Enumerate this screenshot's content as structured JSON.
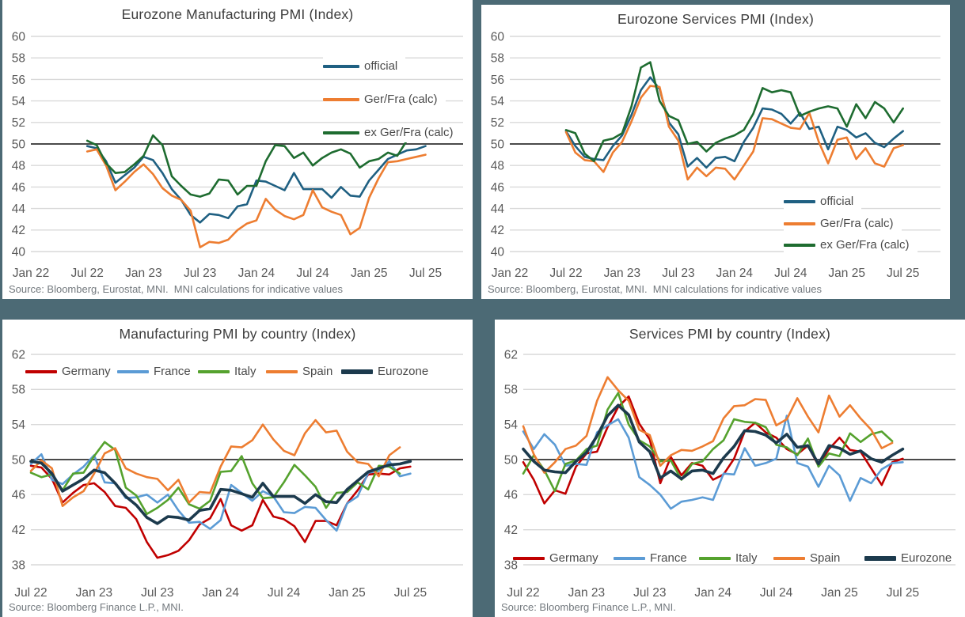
{
  "page": {
    "background": "#4C6A75",
    "panel_background": "#ffffff"
  },
  "chart_data": [
    {
      "id": "eurozone-manufacturing-pmi",
      "type": "line",
      "title": "Eurozone Manufacturing PMI (Index)",
      "source": "Source: Bloomberg, Eurostat, MNI.  MNI calculations for indicative values",
      "ylim": [
        40,
        60
      ],
      "ytick_step": 2,
      "ref_line": 50,
      "grid": true,
      "legend_position": "inside-upper-right",
      "x": {
        "tick_labels": [
          "Jan 22",
          "Jul 22",
          "Jan 23",
          "Jul 23",
          "Jan 24",
          "Jul 24",
          "Jan 25",
          "Jul 25"
        ],
        "tick_months": [
          0,
          6,
          12,
          18,
          24,
          30,
          36,
          42
        ],
        "total_months": 46,
        "data_start_month": 6,
        "data_start_label": "Jul 22",
        "data_end_label": "Jul 25"
      },
      "series": [
        {
          "name": "official",
          "color": "#1F6082",
          "width": 2.6,
          "values": [
            49.8,
            49.6,
            48.4,
            46.4,
            47.1,
            47.8,
            48.8,
            48.5,
            47.3,
            45.8,
            44.8,
            43.4,
            42.7,
            43.5,
            43.4,
            43.1,
            44.2,
            44.4,
            46.6,
            46.5,
            46.1,
            45.7,
            47.3,
            45.8,
            45.8,
            45.8,
            45.0,
            46.0,
            45.2,
            45.1,
            46.6,
            47.6,
            48.6,
            49.0,
            49.4,
            49.5,
            49.8
          ]
        },
        {
          "name": "Ger/Fra (calc)",
          "color": "#ED7D31",
          "width": 2.6,
          "values": [
            49.3,
            49.5,
            48.0,
            45.7,
            46.5,
            47.4,
            48.1,
            47.2,
            45.9,
            45.2,
            44.8,
            43.8,
            40.4,
            40.9,
            40.8,
            41.1,
            42.0,
            42.6,
            42.9,
            44.9,
            43.9,
            43.3,
            43.0,
            43.4,
            45.7,
            44.1,
            43.7,
            43.4,
            41.6,
            42.2,
            45.0,
            46.8,
            48.3,
            48.4,
            48.6,
            48.8,
            49.0
          ]
        },
        {
          "name": "ex Ger/Fra (calc)",
          "color": "#1E6C30",
          "width": 2.6,
          "values": [
            50.3,
            49.9,
            48.2,
            47.3,
            47.4,
            48.1,
            48.9,
            50.8,
            49.9,
            47.0,
            46.1,
            45.3,
            45.1,
            45.4,
            46.7,
            46.6,
            45.3,
            46.1,
            46.1,
            48.4,
            49.9,
            49.8,
            48.7,
            49.2,
            48.0,
            48.7,
            49.2,
            49.5,
            49.1,
            47.8,
            48.4,
            48.6,
            49.2,
            48.9,
            50.3,
            50.5,
            50.9
          ]
        }
      ]
    },
    {
      "id": "eurozone-services-pmi",
      "type": "line",
      "title": "Eurozone Services PMI (Index)",
      "source": "Source: Bloomberg, Eurostat, MNI.  MNI calculations for indicative values",
      "ylim": [
        40,
        60
      ],
      "ytick_step": 2,
      "ref_line": 50,
      "grid": true,
      "legend_position": "inside-lower-right",
      "x": {
        "tick_labels": [
          "Jan 22",
          "Jul 22",
          "Jan 23",
          "Jul 23",
          "Jan 24",
          "Jul 24",
          "Jan 25",
          "Jul 25"
        ],
        "tick_months": [
          0,
          6,
          12,
          18,
          24,
          30,
          36,
          42
        ],
        "total_months": 46,
        "data_start_month": 6,
        "data_start_label": "Jul 22",
        "data_end_label": "Jul 25"
      },
      "series": [
        {
          "name": "official",
          "color": "#1F6082",
          "width": 2.6,
          "values": [
            51.2,
            49.8,
            48.8,
            48.6,
            48.5,
            49.8,
            50.8,
            52.7,
            55.0,
            56.2,
            55.1,
            52.0,
            50.9,
            47.9,
            48.7,
            47.8,
            48.7,
            48.8,
            48.4,
            50.2,
            51.5,
            53.3,
            53.2,
            52.8,
            51.9,
            52.9,
            51.4,
            51.6,
            49.5,
            51.6,
            51.3,
            50.6,
            51.0,
            50.1,
            49.7,
            50.5,
            51.2
          ]
        },
        {
          "name": "Ger/Fra (calc)",
          "color": "#ED7D31",
          "width": 2.6,
          "values": [
            51.1,
            49.2,
            48.5,
            48.4,
            47.4,
            49.2,
            50.2,
            52.1,
            54.3,
            55.4,
            55.3,
            51.6,
            50.3,
            46.7,
            47.8,
            47.0,
            47.8,
            47.7,
            46.7,
            48.0,
            49.3,
            52.4,
            52.3,
            51.9,
            51.5,
            51.4,
            52.9,
            50.2,
            48.2,
            50.4,
            50.6,
            48.6,
            49.6,
            48.2,
            47.9,
            49.6,
            49.9
          ]
        },
        {
          "name": "ex Ger/Fra (calc)",
          "color": "#1E6C30",
          "width": 2.6,
          "values": [
            51.3,
            51.0,
            49.1,
            48.4,
            50.3,
            50.5,
            51.0,
            53.5,
            57.1,
            57.6,
            54.0,
            52.6,
            52.2,
            50.0,
            50.2,
            49.3,
            50.1,
            50.5,
            50.8,
            51.3,
            52.8,
            55.2,
            54.8,
            55.0,
            54.8,
            52.6,
            53.0,
            53.3,
            53.5,
            53.3,
            51.6,
            53.7,
            52.4,
            53.9,
            53.3,
            52.0,
            53.3
          ]
        }
      ]
    },
    {
      "id": "manufacturing-pmi-by-country",
      "type": "line",
      "title": "Manufacturing PMI by country (Index)",
      "source": "Source: Bloomberg Finance L.P., MNI.",
      "ylim": [
        38,
        62
      ],
      "ytick_step": 4,
      "ref_line": 50,
      "grid": true,
      "legend_position": "inside-top-row",
      "x": {
        "tick_labels": [
          "Jul 22",
          "Jan 23",
          "Jul 23",
          "Jan 24",
          "Jul 24",
          "Jan 25",
          "Jul 25"
        ],
        "tick_months": [
          0,
          6,
          12,
          18,
          24,
          30,
          36
        ],
        "total_months": 41,
        "data_start_month": 0,
        "data_start_label": "Jul 22",
        "data_end_label": "Jul 25"
      },
      "series": [
        {
          "name": "Germany",
          "color": "#C00000",
          "width": 2.6,
          "values": [
            49.3,
            49.1,
            47.8,
            45.1,
            46.2,
            47.1,
            47.3,
            46.3,
            44.7,
            44.5,
            43.2,
            40.6,
            38.8,
            39.1,
            39.6,
            40.8,
            42.6,
            43.3,
            45.5,
            42.5,
            41.9,
            42.5,
            45.4,
            43.5,
            43.2,
            42.4,
            40.6,
            43.0,
            43.0,
            42.5,
            45.0,
            46.5,
            48.3,
            48.4,
            48.3,
            49.0,
            49.2
          ]
        },
        {
          "name": "France",
          "color": "#5B9BD5",
          "width": 2.6,
          "values": [
            49.5,
            50.6,
            47.7,
            47.2,
            48.3,
            49.2,
            50.5,
            47.4,
            47.3,
            45.6,
            45.7,
            46.0,
            45.1,
            46.0,
            44.2,
            42.8,
            42.9,
            42.1,
            43.1,
            47.1,
            46.2,
            45.3,
            46.4,
            45.8,
            44.0,
            43.9,
            44.6,
            44.5,
            43.1,
            41.9,
            45.0,
            45.8,
            48.5,
            48.7,
            49.8,
            48.1,
            48.4
          ]
        },
        {
          "name": "Italy",
          "color": "#55A22E",
          "width": 2.6,
          "values": [
            48.5,
            48.0,
            48.3,
            46.5,
            48.4,
            48.5,
            50.4,
            52.0,
            51.1,
            46.8,
            45.9,
            43.8,
            44.5,
            45.4,
            46.8,
            44.9,
            44.4,
            45.3,
            48.6,
            48.7,
            50.4,
            47.3,
            45.6,
            45.7,
            47.4,
            49.4,
            48.2,
            46.9,
            44.5,
            46.2,
            46.3,
            47.4,
            46.6,
            49.3,
            49.2,
            48.4,
            null
          ]
        },
        {
          "name": "Spain",
          "color": "#ED7D31",
          "width": 2.6,
          "values": [
            48.7,
            49.9,
            49.0,
            44.7,
            45.7,
            46.4,
            48.4,
            50.7,
            51.3,
            49.0,
            48.4,
            48.0,
            47.8,
            46.5,
            47.7,
            45.1,
            46.3,
            46.2,
            49.2,
            51.5,
            51.4,
            52.2,
            54.0,
            52.3,
            51.0,
            50.5,
            53.0,
            54.5,
            53.1,
            53.3,
            50.9,
            49.7,
            49.5,
            48.1,
            50.5,
            51.4,
            null
          ]
        },
        {
          "name": "Eurozone",
          "color": "#1C3A4D",
          "width": 3.6,
          "values": [
            49.8,
            49.6,
            48.4,
            46.4,
            47.1,
            47.8,
            48.8,
            48.5,
            47.3,
            45.8,
            44.8,
            43.4,
            42.7,
            43.5,
            43.4,
            43.1,
            44.2,
            44.4,
            46.6,
            46.5,
            46.1,
            45.7,
            47.3,
            45.8,
            45.8,
            45.8,
            45.0,
            46.0,
            45.2,
            45.1,
            46.6,
            47.6,
            48.6,
            49.0,
            49.4,
            49.5,
            49.8
          ]
        }
      ]
    },
    {
      "id": "services-pmi-by-country",
      "type": "line",
      "title": "Services PMI by country (Index)",
      "source": "Source: Bloomberg Finance L.P., MNI.",
      "ylim": [
        38,
        62
      ],
      "ytick_step": 4,
      "ref_line": 50,
      "grid": true,
      "legend_position": "inside-bottom-row",
      "x": {
        "tick_labels": [
          "Jul 22",
          "Jan 23",
          "Jul 23",
          "Jan 24",
          "Jul 24",
          "Jan 25",
          "Jul 25"
        ],
        "tick_months": [
          0,
          6,
          12,
          18,
          24,
          30,
          36
        ],
        "total_months": 41,
        "data_start_month": 0,
        "data_start_label": "Jul 22",
        "data_end_label": "Jul 25"
      },
      "series": [
        {
          "name": "Germany",
          "color": "#C00000",
          "width": 2.6,
          "values": [
            49.7,
            47.7,
            45.0,
            46.5,
            46.1,
            49.2,
            50.7,
            50.9,
            53.7,
            56.0,
            57.2,
            54.1,
            52.3,
            47.3,
            50.3,
            48.2,
            49.6,
            49.3,
            47.7,
            48.3,
            50.1,
            53.2,
            54.2,
            53.1,
            52.5,
            51.2,
            50.6,
            51.6,
            49.3,
            51.2,
            52.5,
            51.1,
            50.9,
            49.0,
            47.1,
            49.7,
            50.1
          ]
        },
        {
          "name": "France",
          "color": "#5B9BD5",
          "width": 2.6,
          "values": [
            53.2,
            51.2,
            52.9,
            51.7,
            49.3,
            49.5,
            49.4,
            53.1,
            53.9,
            54.6,
            52.5,
            48.0,
            47.1,
            46.0,
            44.4,
            45.2,
            45.4,
            45.7,
            45.4,
            48.4,
            48.3,
            51.3,
            49.3,
            49.6,
            50.1,
            55.0,
            49.6,
            49.2,
            46.9,
            49.3,
            48.2,
            45.3,
            47.9,
            47.3,
            48.9,
            49.6,
            49.7
          ]
        },
        {
          "name": "Italy",
          "color": "#55A22E",
          "width": 2.6,
          "values": [
            48.4,
            50.5,
            48.8,
            46.4,
            49.5,
            49.9,
            51.2,
            51.6,
            55.7,
            57.6,
            54.0,
            52.2,
            51.5,
            49.8,
            49.9,
            47.7,
            49.5,
            49.8,
            51.2,
            52.2,
            54.6,
            54.3,
            54.2,
            53.7,
            51.7,
            51.4,
            50.5,
            52.4,
            49.2,
            50.7,
            50.4,
            53.0,
            52.0,
            52.9,
            53.2,
            52.1,
            null
          ]
        },
        {
          "name": "Spain",
          "color": "#ED7D31",
          "width": 2.6,
          "values": [
            53.8,
            50.6,
            48.5,
            49.7,
            51.2,
            51.6,
            52.7,
            56.7,
            59.4,
            57.9,
            56.7,
            53.4,
            52.8,
            49.3,
            50.5,
            51.1,
            51.0,
            51.5,
            52.1,
            54.7,
            56.1,
            56.2,
            56.9,
            56.8,
            53.9,
            54.6,
            57.0,
            54.9,
            53.1,
            57.3,
            54.9,
            56.2,
            54.7,
            53.4,
            51.3,
            51.9,
            null
          ]
        },
        {
          "name": "Eurozone",
          "color": "#1C3A4D",
          "width": 3.6,
          "values": [
            51.2,
            49.8,
            48.8,
            48.6,
            48.5,
            49.8,
            50.8,
            52.7,
            55.0,
            56.2,
            55.1,
            52.0,
            50.9,
            47.9,
            48.7,
            47.8,
            48.7,
            48.8,
            48.4,
            50.2,
            51.5,
            53.3,
            53.2,
            52.8,
            51.9,
            52.9,
            51.4,
            51.6,
            49.5,
            51.6,
            51.3,
            50.6,
            51.0,
            50.1,
            49.7,
            50.5,
            51.2
          ]
        }
      ]
    }
  ]
}
